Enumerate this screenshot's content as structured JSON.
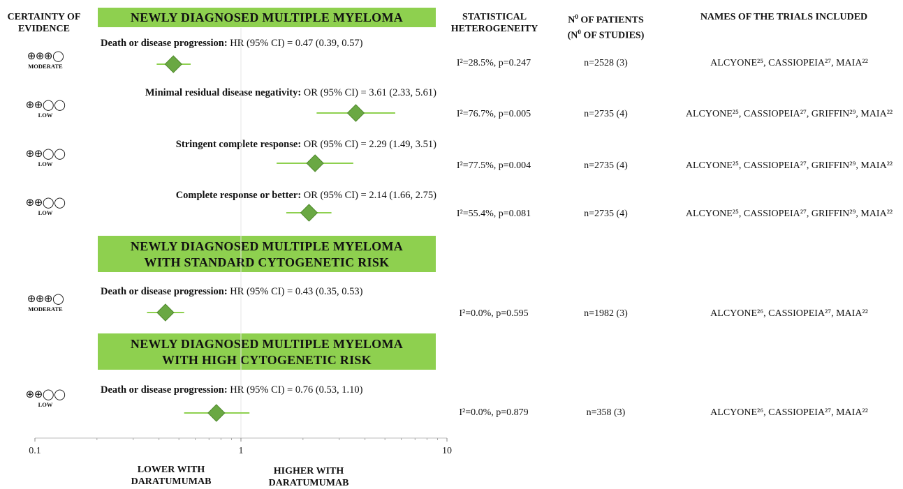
{
  "headers": {
    "certainty": [
      "CERTAINTY OF",
      "EVIDENCE"
    ],
    "heterogeneity": [
      "STATISTICAL",
      "HETEROGENEITY"
    ],
    "patients": [
      "N0 OF PATIENTS",
      "(N0 OF STUDIES)"
    ],
    "trials": "NAMES OF THE TRIALS INCLUDED"
  },
  "banners": [
    [
      "NEWLY DIAGNOSED MULTIPLE MYELOMA"
    ],
    [
      "NEWLY DIAGNOSED MULTIPLE MYELOMA",
      "WITH STANDARD CYTOGENETIC RISK"
    ],
    [
      "NEWLY DIAGNOSED MULTIPLE MYELOMA",
      "WITH HIGH CYTOGENETIC RISK"
    ]
  ],
  "rows": [
    {
      "certainty_symbol": "⊕⊕⊕◯",
      "certainty": "MODERATE",
      "outcome": "Death or disease progression:",
      "stat": "HR (95%  CI) = 0.47 (0.39, 0.57)",
      "heterogeneity": "I²=28.5%, p=0.247",
      "patients": "n=2528 (3)",
      "trials": "ALCYONE²⁵, CASSIOPEIA²⁷,  MAIA²²"
    },
    {
      "certainty_symbol": "⊕⊕◯◯",
      "certainty": "LOW",
      "outcome": "Minimal residual disease negativity:",
      "stat": "OR (95%  CI) = 3.61 (2.33, 5.61)",
      "heterogeneity": "I²=76.7%, p=0.005",
      "patients": "n=2735 (4)",
      "trials": "ALCYONE²⁵, CASSIOPEIA²⁷,  GRIFFIN²⁹, MAIA²²"
    },
    {
      "certainty_symbol": "⊕⊕◯◯",
      "certainty": "LOW",
      "outcome": "Stringent complete response:",
      "stat": "OR (95%  CI) = 2.29 (1.49, 3.51)",
      "heterogeneity": "I²=77.5%, p=0.004",
      "patients": "n=2735 (4)",
      "trials": "ALCYONE²⁵, CASSIOPEIA²⁷,  GRIFFIN²⁹, MAIA²²"
    },
    {
      "certainty_symbol": "⊕⊕◯◯",
      "certainty": "LOW",
      "outcome": "Complete response or better:",
      "stat": "OR (95%  CI) = 2.14 (1.66, 2.75)",
      "heterogeneity": "I²=55.4%, p=0.081",
      "patients": "n=2735 (4)",
      "trials": "ALCYONE²⁵, CASSIOPEIA²⁷,  GRIFFIN²⁹, MAIA²²"
    },
    {
      "certainty_symbol": "⊕⊕⊕◯",
      "certainty": "MODERATE",
      "outcome": "Death or disease progression:",
      "stat": "HR (95%  CI) = 0.43 (0.35, 0.53)",
      "heterogeneity": "I²=0.0%, p=0.595",
      "patients": "n=1982 (3)",
      "trials": "ALCYONE²⁶, CASSIOPEIA²⁷,  MAIA²²"
    },
    {
      "certainty_symbol": "⊕⊕◯◯",
      "certainty": "LOW",
      "outcome": "Death or disease progression:",
      "stat": "HR (95%  CI) = 0.76 (0.53, 1.10)",
      "heterogeneity": "I²=0.0%, p=0.879",
      "patients": "n=358 (3)",
      "trials": "ALCYONE²⁶, CASSIOPEIA²⁷,  MAIA²²"
    }
  ],
  "axis_labels": {
    "lower": [
      "LOWER WITH",
      "DARATUMUMAB"
    ],
    "higher": [
      "HIGHER WITH",
      "DARATUMUMAB"
    ]
  },
  "colors": {
    "banner": "#8ed04f",
    "marker": "#6aa843",
    "ci_line": "#8ed04f"
  },
  "chart_data": {
    "type": "forest",
    "x_scale": "log",
    "xlim": [
      0.1,
      10
    ],
    "x_ticks": [
      "0.1",
      "1",
      "10"
    ],
    "reference_line": 1,
    "estimates": [
      {
        "value": 0.47,
        "lower": 0.39,
        "upper": 0.57
      },
      {
        "value": 3.61,
        "lower": 2.33,
        "upper": 5.61
      },
      {
        "value": 2.29,
        "lower": 1.49,
        "upper": 3.51
      },
      {
        "value": 2.14,
        "lower": 1.66,
        "upper": 2.75
      },
      {
        "value": 0.43,
        "lower": 0.35,
        "upper": 0.53
      },
      {
        "value": 0.76,
        "lower": 0.53,
        "upper": 1.1
      }
    ]
  }
}
